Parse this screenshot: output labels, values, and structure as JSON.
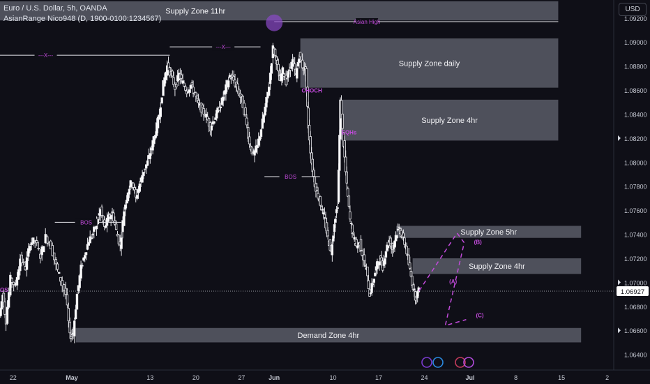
{
  "header": {
    "symbol_line": "Euro / U.S. Dollar, 5h, OANDA",
    "indicator_line": "AsianRange Nico948 (D, 1900-0100:1234567)",
    "currency_button": "USD"
  },
  "colors": {
    "background": "#0f0f17",
    "zone_fill": "#5d5f6a",
    "annotation": "#c34bdc",
    "candle": "#e6e6ea",
    "axis_text": "#c5c8d2",
    "price_label_bg": "#ffffff"
  },
  "chart_data": {
    "type": "candlestick",
    "instrument": "Euro / U.S. Dollar",
    "timeframe": "5h",
    "source": "OANDA",
    "y_ticks": [
      "1.09200",
      "1.09000",
      "1.08800",
      "1.08600",
      "1.08400",
      "1.08200",
      "1.08000",
      "1.07800",
      "1.07600",
      "1.07400",
      "1.07200",
      "1.07000",
      "1.06800",
      "1.06600",
      "1.06400"
    ],
    "ylim": [
      1.0627,
      1.0935
    ],
    "x_ticks": [
      "22",
      "May",
      "13",
      "20",
      "27",
      "Jun",
      "10",
      "17",
      "24",
      "Jul",
      "8",
      "15",
      "2"
    ],
    "x_tick_days": [
      -9,
      0,
      12,
      19,
      26,
      31,
      40,
      47,
      54,
      61,
      68,
      75,
      82
    ],
    "xlim": [
      -11,
      83
    ],
    "current_price": "1.06927",
    "current_price_value": 1.06927,
    "price_series": [
      [
        -11,
        1.0672
      ],
      [
        -10.5,
        1.069
      ],
      [
        -10,
        1.0668
      ],
      [
        -9.3,
        1.0703
      ],
      [
        -8.5,
        1.0697
      ],
      [
        -7.8,
        1.072
      ],
      [
        -7,
        1.0712
      ],
      [
        -6.3,
        1.0733
      ],
      [
        -5.5,
        1.0735
      ],
      [
        -4.7,
        1.0722
      ],
      [
        -3.9,
        1.0738
      ],
      [
        -3.1,
        1.073
      ],
      [
        -2.3,
        1.0714
      ],
      [
        -1.6,
        1.0702
      ],
      [
        -0.8,
        1.069
      ],
      [
        -0.2,
        1.0655
      ],
      [
        0.3,
        1.0658
      ],
      [
        0.9,
        1.069
      ],
      [
        1.5,
        1.0712
      ],
      [
        2.1,
        1.0724
      ],
      [
        2.7,
        1.0735
      ],
      [
        3.3,
        1.074
      ],
      [
        3.9,
        1.075
      ],
      [
        4.5,
        1.076
      ],
      [
        5.1,
        1.0745
      ],
      [
        5.7,
        1.0754
      ],
      [
        6.3,
        1.0758
      ],
      [
        6.9,
        1.0743
      ],
      [
        7.5,
        1.073
      ],
      [
        8.1,
        1.076
      ],
      [
        8.7,
        1.0776
      ],
      [
        9.3,
        1.0785
      ],
      [
        9.9,
        1.077
      ],
      [
        10.5,
        1.0782
      ],
      [
        11.1,
        1.0793
      ],
      [
        11.7,
        1.08
      ],
      [
        12.3,
        1.0812
      ],
      [
        12.9,
        1.0825
      ],
      [
        13.5,
        1.084
      ],
      [
        14.1,
        1.0865
      ],
      [
        14.7,
        1.088
      ],
      [
        15.3,
        1.0873
      ],
      [
        15.9,
        1.0862
      ],
      [
        16.5,
        1.0873
      ],
      [
        17.1,
        1.0866
      ],
      [
        17.7,
        1.0859
      ],
      [
        18.3,
        1.0864
      ],
      [
        18.9,
        1.0857
      ],
      [
        19.5,
        1.0848
      ],
      [
        20.1,
        1.0843
      ],
      [
        20.7,
        1.0838
      ],
      [
        21.3,
        1.0829
      ],
      [
        21.9,
        1.0836
      ],
      [
        22.5,
        1.0843
      ],
      [
        23.1,
        1.0851
      ],
      [
        23.7,
        1.0862
      ],
      [
        24.3,
        1.0872
      ],
      [
        24.9,
        1.0868
      ],
      [
        25.5,
        1.086
      ],
      [
        26.1,
        1.0852
      ],
      [
        26.7,
        1.0838
      ],
      [
        27.3,
        1.0815
      ],
      [
        27.9,
        1.0806
      ],
      [
        28.5,
        1.0813
      ],
      [
        29.1,
        1.0828
      ],
      [
        29.7,
        1.0845
      ],
      [
        30.3,
        1.0864
      ],
      [
        30.9,
        1.0895
      ],
      [
        31.4,
        1.0885
      ],
      [
        31.9,
        1.0868
      ],
      [
        32.4,
        1.0876
      ],
      [
        32.9,
        1.0867
      ],
      [
        33.4,
        1.0877
      ],
      [
        33.9,
        1.0884
      ],
      [
        34.4,
        1.0872
      ],
      [
        34.9,
        1.0889
      ],
      [
        35.4,
        1.088
      ],
      [
        35.9,
        1.0875
      ],
      [
        36.3,
        1.083
      ],
      [
        36.8,
        1.08
      ],
      [
        37.3,
        1.0782
      ],
      [
        37.8,
        1.0772
      ],
      [
        38.3,
        1.0762
      ],
      [
        38.8,
        1.0752
      ],
      [
        39.3,
        1.0737
      ],
      [
        39.8,
        1.0725
      ],
      [
        40.3,
        1.075
      ],
      [
        40.8,
        1.0765
      ],
      [
        41.2,
        1.085
      ],
      [
        41.7,
        1.0815
      ],
      [
        42.2,
        1.078
      ],
      [
        42.7,
        1.0752
      ],
      [
        43.2,
        1.0738
      ],
      [
        43.7,
        1.073
      ],
      [
        44.2,
        1.0733
      ],
      [
        44.7,
        1.072
      ],
      [
        45.2,
        1.071
      ],
      [
        45.7,
        1.069
      ],
      [
        46.2,
        1.07
      ],
      [
        46.7,
        1.0712
      ],
      [
        47.2,
        1.072
      ],
      [
        47.7,
        1.0713
      ],
      [
        48.2,
        1.0727
      ],
      [
        48.7,
        1.0735
      ],
      [
        49.2,
        1.0728
      ],
      [
        49.7,
        1.0739
      ],
      [
        50.2,
        1.0745
      ],
      [
        50.7,
        1.0738
      ],
      [
        51.2,
        1.073
      ],
      [
        51.7,
        1.0715
      ],
      [
        52.2,
        1.07
      ],
      [
        52.7,
        1.0688
      ],
      [
        53.2,
        1.0693
      ]
    ],
    "zones": [
      {
        "label": "Supply Zone 11hr",
        "from": -11,
        "to": 74.5,
        "top": 1.0934,
        "bottom": 1.0918
      },
      {
        "label": "Supply Zone daily",
        "from": 35.0,
        "to": 74.5,
        "top": 1.0903,
        "bottom": 1.0862
      },
      {
        "label": "Supply Zone 4hr",
        "from": 41.2,
        "to": 74.5,
        "top": 1.0852,
        "bottom": 1.0818
      },
      {
        "label": "Supply Zone 5hr",
        "from": 49.7,
        "to": 78.0,
        "top": 1.0747,
        "bottom": 1.0737
      },
      {
        "label": "Supply Zone 4hr",
        "from": 52.2,
        "to": 78.0,
        "top": 1.072,
        "bottom": 1.0707
      },
      {
        "label": "Demand Zone 4hr",
        "from": 0.6,
        "to": 78.0,
        "top": 1.0662,
        "bottom": 1.065
      }
    ],
    "structure_lines": [
      {
        "label": "---X---",
        "from": -11,
        "to": 15.0,
        "price": 1.0889,
        "label_at": -4.0
      },
      {
        "label": "---X---",
        "from": 15.0,
        "to": 28.9,
        "price": 1.0896,
        "label_at": 23.2
      },
      {
        "label": "BOS",
        "from": -2.6,
        "to": 7.6,
        "price": 1.075,
        "label_at": 2.2
      },
      {
        "label": "BOS",
        "from": 29.5,
        "to": 38.0,
        "price": 1.0788,
        "label_at": 33.5
      },
      {
        "label": "Asian High",
        "from": 31.0,
        "to": 74.5,
        "price": 1.0917,
        "label_at": 45.2
      }
    ],
    "annotations": [
      {
        "text": "CHOCH",
        "x": 35.2,
        "price": 1.0858
      },
      {
        "text": "EQHs",
        "x": 41.3,
        "price": 1.0823
      },
      {
        "text": "OS",
        "x": -11.0,
        "price": 1.0692
      },
      {
        "text": "(A)",
        "x": 57.8,
        "price": 1.0699
      },
      {
        "text": "(B)",
        "x": 61.6,
        "price": 1.0732
      },
      {
        "text": "(C)",
        "x": 61.9,
        "price": 1.0671
      }
    ],
    "projection_path": [
      [
        53.2,
        1.0693
      ],
      [
        59.0,
        1.0741
      ],
      [
        60.1,
        1.0733
      ],
      [
        57.2,
        1.0664
      ],
      [
        60.4,
        1.0669
      ]
    ],
    "highlight_circle": {
      "x": 31.0,
      "price": 1.0916
    }
  }
}
